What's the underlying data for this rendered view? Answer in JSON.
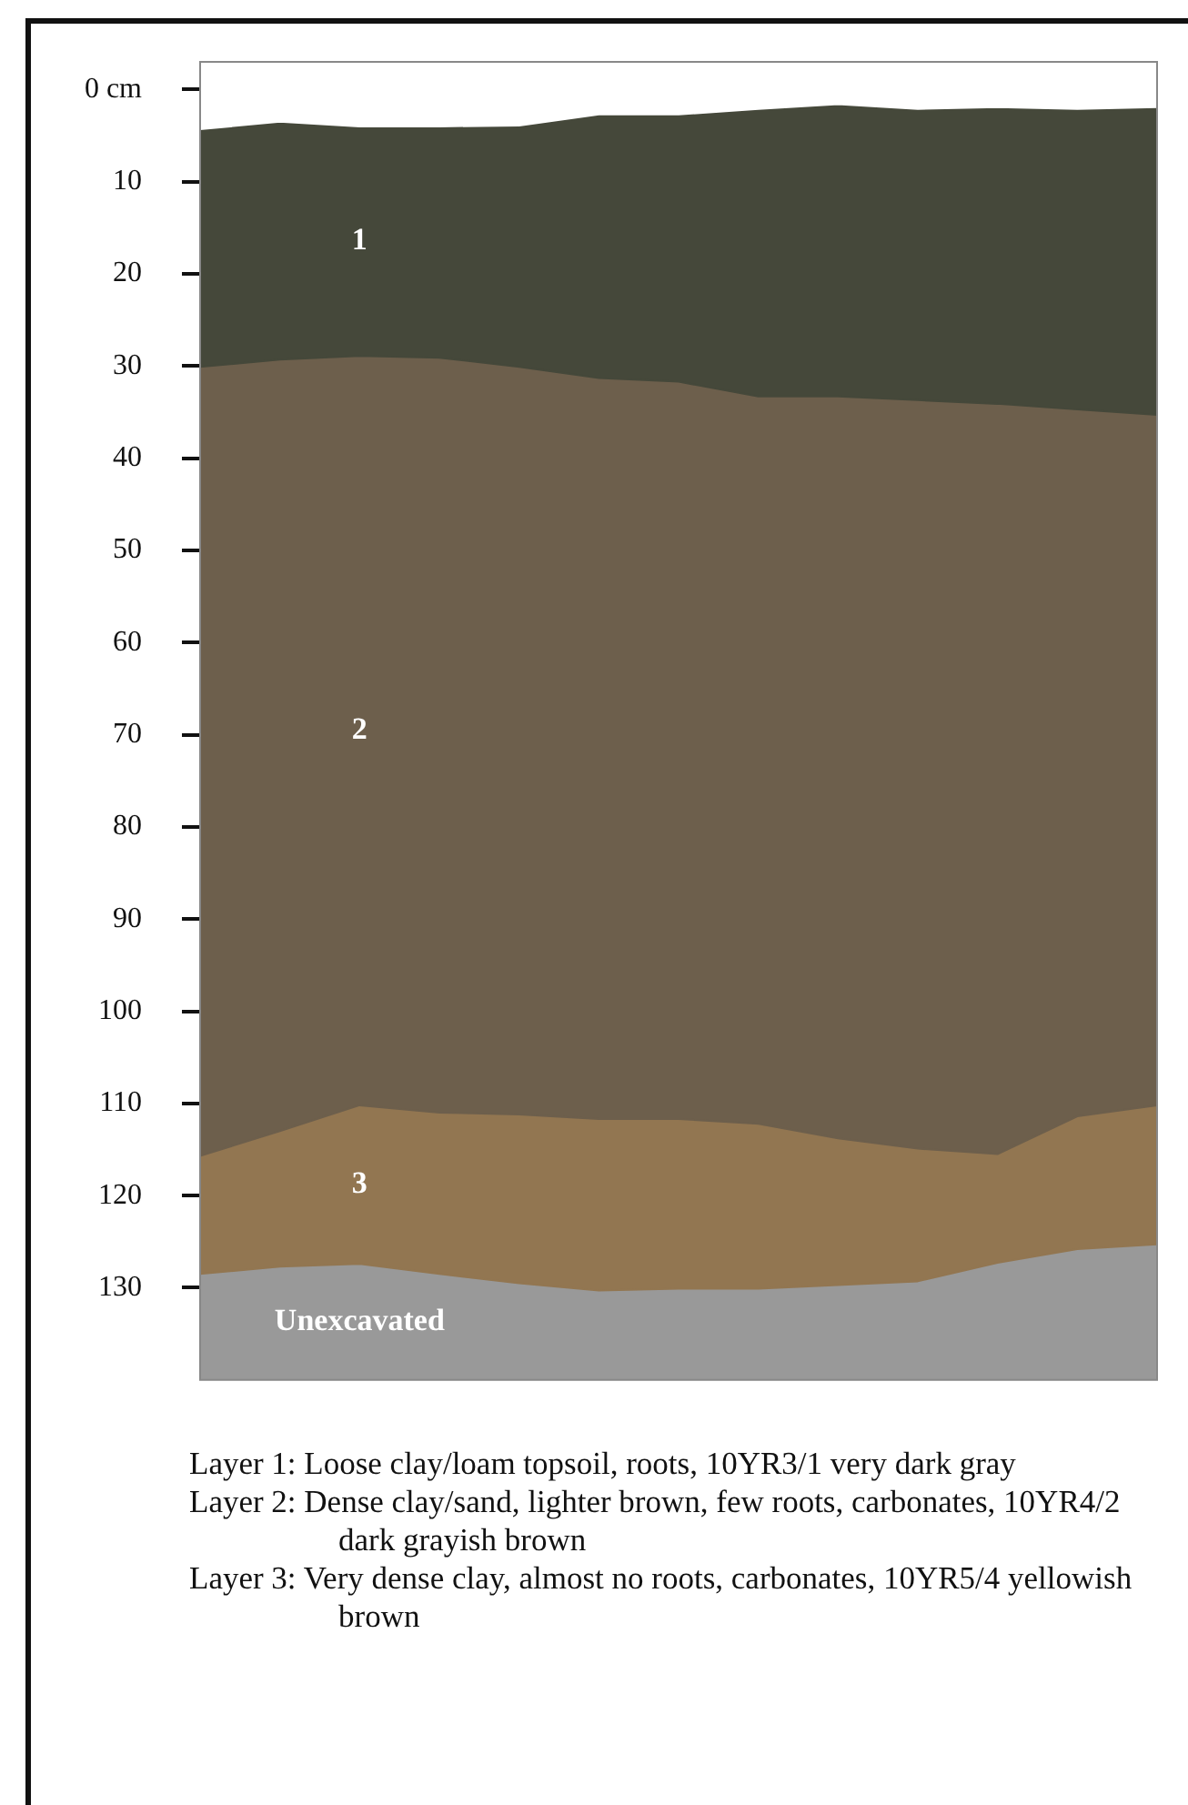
{
  "chart_data": {
    "type": "area",
    "stacked": true,
    "categories": [
      null,
      null,
      null,
      null,
      null,
      null,
      null,
      null,
      null,
      null,
      null,
      null,
      null
    ],
    "series": [
      {
        "color": "#ffffff",
        "values": [
          4.3,
          3.5,
          4.0,
          4.0,
          3.9,
          2.7,
          2.7,
          2.1,
          1.6,
          2.1,
          1.9,
          2.1,
          1.9
        ]
      },
      {
        "name": "1",
        "color": "#45483a",
        "values": [
          25.8,
          25.8,
          24.9,
          25.1,
          26.2,
          28.6,
          29.0,
          31.2,
          31.7,
          31.6,
          32.2,
          32.6,
          33.4
        ]
      },
      {
        "name": "2",
        "color": "#6d5f4c",
        "values": [
          85.6,
          83.7,
          81.3,
          81.9,
          81.1,
          80.4,
          80.0,
          78.9,
          80.5,
          81.2,
          81.4,
          76.7,
          74.9
        ]
      },
      {
        "name": "3",
        "color": "#927651",
        "values": [
          12.8,
          14.7,
          17.2,
          17.5,
          18.3,
          18.6,
          18.4,
          17.9,
          15.9,
          14.4,
          11.8,
          14.4,
          15.1
        ]
      },
      {
        "name": "Unexcavated",
        "color": "#999999",
        "values": [
          11.5,
          12.3,
          12.6,
          11.5,
          10.5,
          9.7,
          9.9,
          9.9,
          10.3,
          10.7,
          12.7,
          14.2,
          14.7
        ]
      }
    ],
    "ylim": [
      140,
      -3
    ],
    "yticks": [
      {
        "value": 0,
        "label": "0 cm"
      },
      10,
      20,
      30,
      40,
      50,
      60,
      70,
      80,
      90,
      100,
      110,
      120,
      130
    ],
    "tick_labels": "y",
    "grid": false,
    "legend": false,
    "annotations": [
      "Layer 1: Loose clay/loam topsoil, roots, 10YR3/1 very dark gray",
      "Layer 2: Dense clay/sand, lighter brown, few roots, carbonates, 10YR4/2 dark grayish brown",
      "Layer 3: Very dense clay, almost no roots, carbonates, 10YR5/4 yellowish brown"
    ]
  }
}
